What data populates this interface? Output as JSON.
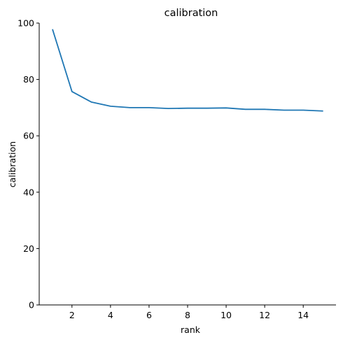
{
  "chart_data": {
    "type": "line",
    "title": "calibration",
    "xlabel": "rank",
    "ylabel": "calibration",
    "xlim": [
      0.3,
      15.7
    ],
    "ylim": [
      0,
      100
    ],
    "xticks": [
      2,
      4,
      6,
      8,
      10,
      12,
      14
    ],
    "yticks": [
      0,
      20,
      40,
      60,
      80,
      100
    ],
    "grid": false,
    "series": [
      {
        "x": [
          1,
          2,
          3,
          4,
          5,
          6,
          7,
          8,
          9,
          10,
          11,
          12,
          13,
          14,
          15
        ],
        "values": [
          97.6,
          75.7,
          72.0,
          70.5,
          70.0,
          70.0,
          69.7,
          69.8,
          69.8,
          69.9,
          69.4,
          69.4,
          69.1,
          69.1,
          68.8
        ],
        "color": "#1f77b4"
      }
    ]
  }
}
